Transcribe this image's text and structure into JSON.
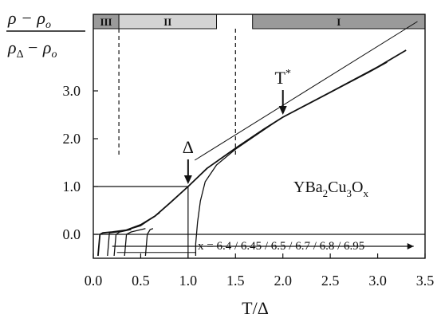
{
  "chart_data": {
    "type": "line",
    "xlabel": "T/Δ",
    "ylabel": {
      "numerator": "ρ − ρ",
      "numerator_sub": "o",
      "denominator_a": "ρ",
      "denominator_a_sub": "Δ",
      "denominator_b": "− ρ",
      "denominator_b_sub": "o"
    },
    "xlim": [
      0,
      3.5
    ],
    "ylim": [
      -0.5,
      4.6
    ],
    "x_ticks": [
      "0.0",
      "0.5",
      "1.0",
      "1.5",
      "2.0",
      "2.5",
      "3.0",
      "3.5"
    ],
    "x_tick_values": [
      0,
      0.5,
      1.0,
      1.5,
      2.0,
      2.5,
      3.0,
      3.5
    ],
    "y_ticks": [
      "0.0",
      "1.0",
      "2.0",
      "3.0"
    ],
    "y_tick_values": [
      0,
      1,
      2,
      3
    ],
    "grid": false,
    "regions": [
      {
        "label": "III",
        "x_start": 0.0,
        "x_end": 0.27,
        "color": "#9a9a9a"
      },
      {
        "label": "II",
        "x_start": 0.27,
        "x_end": 1.3,
        "color": "#d4d4d4"
      },
      {
        "label": "I",
        "x_start": 1.68,
        "x_end": 3.5,
        "color": "#9a9a9a"
      }
    ],
    "region_band_y": [
      4.3,
      4.6
    ],
    "dashed_boundaries_x": [
      0.27,
      1.5
    ],
    "horizontal_lines_y": [
      0.0,
      1.0
    ],
    "material": {
      "prefix": "YBa",
      "s1": "2",
      "mid": "Cu",
      "s2": "3",
      "mid2": "O",
      "s3": "x"
    },
    "compositions_label": "x = 6.4 / 6.45 / 6.5 / 6.7 / 6.8 / 6.95",
    "annotations": [
      {
        "text": "Δ",
        "x": 1.0,
        "y": 1.0
      },
      {
        "text": "T",
        "sup": "*",
        "x": 2.0,
        "y": 2.45
      }
    ],
    "series": [
      {
        "values": [
          [
            1.08,
            -0.45
          ],
          [
            1.08,
            -0.2
          ],
          [
            1.1,
            0.25
          ],
          [
            1.13,
            0.7
          ],
          [
            1.18,
            1.1
          ],
          [
            1.3,
            1.45
          ],
          [
            1.5,
            1.78
          ],
          [
            1.7,
            2.05
          ],
          [
            1.9,
            2.32
          ],
          [
            2.0,
            2.45
          ],
          [
            2.3,
            2.76
          ],
          [
            2.6,
            3.07
          ],
          [
            2.9,
            3.38
          ],
          [
            3.1,
            3.6
          ]
        ]
      },
      {
        "values": [
          [
            0.05,
            -0.45
          ],
          [
            0.07,
            0.0
          ],
          [
            0.1,
            0.03
          ],
          [
            0.2,
            0.05
          ],
          [
            0.35,
            0.09
          ],
          [
            0.5,
            0.2
          ],
          [
            0.65,
            0.38
          ],
          [
            0.8,
            0.64
          ],
          [
            1.0,
            1.0
          ],
          [
            1.2,
            1.38
          ],
          [
            1.5,
            1.8
          ],
          [
            1.8,
            2.2
          ],
          [
            2.0,
            2.45
          ],
          [
            2.5,
            2.97
          ],
          [
            3.0,
            3.5
          ],
          [
            3.3,
            3.85
          ]
        ]
      },
      {
        "values": [
          [
            0.15,
            -0.45
          ],
          [
            0.17,
            0.03
          ],
          [
            0.3,
            0.06
          ],
          [
            0.5,
            0.18
          ],
          [
            0.7,
            0.45
          ]
        ]
      },
      {
        "values": [
          [
            0.22,
            -0.45
          ],
          [
            0.24,
            0.0
          ],
          [
            0.28,
            0.05
          ],
          [
            0.4,
            0.1
          ]
        ]
      },
      {
        "values": [
          [
            0.33,
            -0.45
          ],
          [
            0.35,
            0.0
          ],
          [
            0.4,
            0.05
          ],
          [
            0.55,
            0.12
          ]
        ]
      },
      {
        "values": [
          [
            0.55,
            -0.45
          ],
          [
            0.57,
            0.0
          ],
          [
            0.6,
            0.1
          ],
          [
            0.63,
            0.12
          ]
        ]
      }
    ]
  }
}
